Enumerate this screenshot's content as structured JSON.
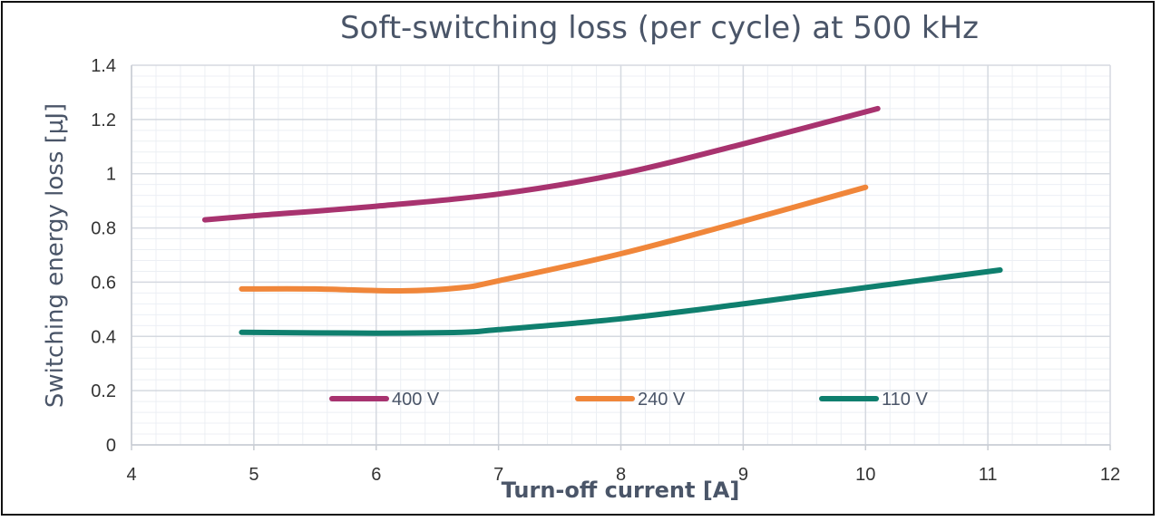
{
  "chart_data": {
    "type": "line",
    "title": "Soft-switching loss (per cycle) at 500 kHz",
    "xlabel": "Turn-off current [A]",
    "ylabel": "Switching energy loss [µJ]",
    "xlim": [
      4,
      12
    ],
    "ylim": [
      0,
      1.4
    ],
    "x_ticks": [
      "4",
      "5",
      "6",
      "7",
      "8",
      "9",
      "10",
      "11",
      "12"
    ],
    "y_ticks": [
      "0",
      "0.2",
      "0.4",
      "0.6",
      "0.8",
      "1",
      "1.2",
      "1.4"
    ],
    "grid": true,
    "legend_position": "bottom-inside",
    "series": [
      {
        "name": "400 V",
        "color": "#a8336f",
        "points": [
          [
            4.6,
            0.83
          ],
          [
            5,
            0.845
          ],
          [
            6,
            0.88
          ],
          [
            7,
            0.925
          ],
          [
            8,
            1.0
          ],
          [
            9,
            1.11
          ],
          [
            10.1,
            1.24
          ]
        ]
      },
      {
        "name": "240 V",
        "color": "#f0863a",
        "points": [
          [
            4.9,
            0.575
          ],
          [
            5.5,
            0.575
          ],
          [
            6.2,
            0.568
          ],
          [
            6.7,
            0.58
          ],
          [
            7,
            0.605
          ],
          [
            8,
            0.705
          ],
          [
            9,
            0.825
          ],
          [
            10,
            0.95
          ]
        ]
      },
      {
        "name": "110 V",
        "color": "#0f7f6e",
        "points": [
          [
            4.9,
            0.415
          ],
          [
            6,
            0.412
          ],
          [
            6.7,
            0.415
          ],
          [
            7,
            0.425
          ],
          [
            8,
            0.465
          ],
          [
            9,
            0.52
          ],
          [
            10,
            0.58
          ],
          [
            11.1,
            0.645
          ]
        ]
      }
    ]
  }
}
